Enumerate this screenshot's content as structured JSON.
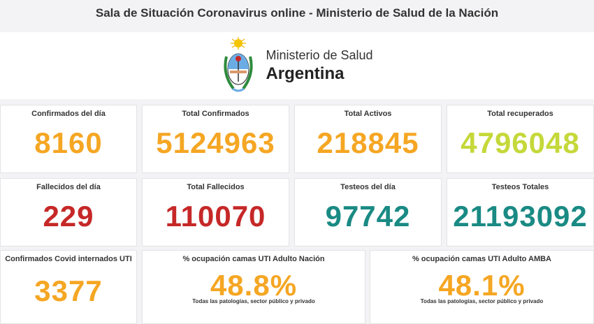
{
  "header": {
    "title": "Sala de Situación Coronavirus online - Ministerio de Salud de la Nación"
  },
  "logo": {
    "line1": "Ministerio de Salud",
    "line2": "Argentina",
    "emblem": "argentina-coat-of-arms-icon"
  },
  "colors": {
    "orange": "#f5a623",
    "lime": "#c5d83a",
    "red": "#c62828",
    "teal": "#1a8a84"
  },
  "stats": {
    "confirmados_dia": {
      "label": "Confirmados del día",
      "value": "8160"
    },
    "total_confirmados": {
      "label": "Total Confirmados",
      "value": "5124963"
    },
    "total_activos": {
      "label": "Total Activos",
      "value": "218845"
    },
    "total_recuperados": {
      "label": "Total recuperados",
      "value": "4796048"
    },
    "fallecidos_dia": {
      "label": "Fallecidos del día",
      "value": "229"
    },
    "total_fallecidos": {
      "label": "Total Fallecidos",
      "value": "110070"
    },
    "testeos_dia": {
      "label": "Testeos del día",
      "value": "97742"
    },
    "testeos_totales": {
      "label": "Testeos Totales",
      "value": "21193092"
    },
    "internados_uti": {
      "label": "Confirmados Covid internados UTI",
      "value": "3377"
    },
    "ocupacion_nacion": {
      "label": "% ocupación camas UTI Adulto Nación",
      "value": "48.8%",
      "note": "Todas las patologías, sector público y privado"
    },
    "ocupacion_amba": {
      "label": "% ocupación camas UTI Adulto AMBA",
      "value": "48.1%",
      "note": "Todas las patologías, sector público y privado"
    }
  }
}
